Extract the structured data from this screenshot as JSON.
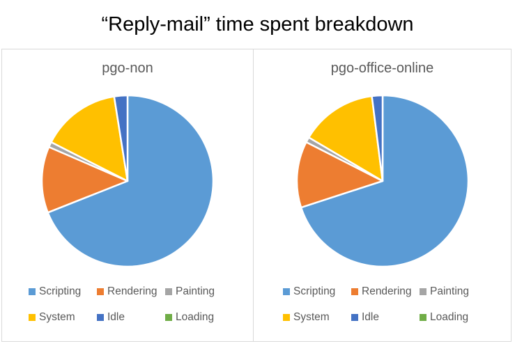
{
  "title": "“Reply-mail” time spent breakdown",
  "theme": {
    "panel_border": "#d9d9d9",
    "title_color": "#000000",
    "chart_text_color": "#595959",
    "background": "#ffffff",
    "slice_gap_color": "#ffffff"
  },
  "chart_data": [
    {
      "type": "pie",
      "title": "pgo-non",
      "categories": [
        "Scripting",
        "Rendering",
        "Painting",
        "System",
        "Idle",
        "Loading"
      ],
      "values": [
        69,
        12.5,
        1,
        15,
        2.5,
        0
      ],
      "units": "percent",
      "colors": [
        "#5B9BD5",
        "#ED7D31",
        "#A5A5A5",
        "#FFC000",
        "#4472C4",
        "#70AD47"
      ],
      "start_angle_deg": 0,
      "direction": "clockwise",
      "legend_position": "bottom"
    },
    {
      "type": "pie",
      "title": "pgo-office-online",
      "categories": [
        "Scripting",
        "Rendering",
        "Painting",
        "System",
        "Idle",
        "Loading"
      ],
      "values": [
        70,
        12.5,
        1,
        14.5,
        2,
        0
      ],
      "units": "percent",
      "colors": [
        "#5B9BD5",
        "#ED7D31",
        "#A5A5A5",
        "#FFC000",
        "#4472C4",
        "#70AD47"
      ],
      "start_angle_deg": 0,
      "direction": "clockwise",
      "legend_position": "bottom"
    }
  ]
}
